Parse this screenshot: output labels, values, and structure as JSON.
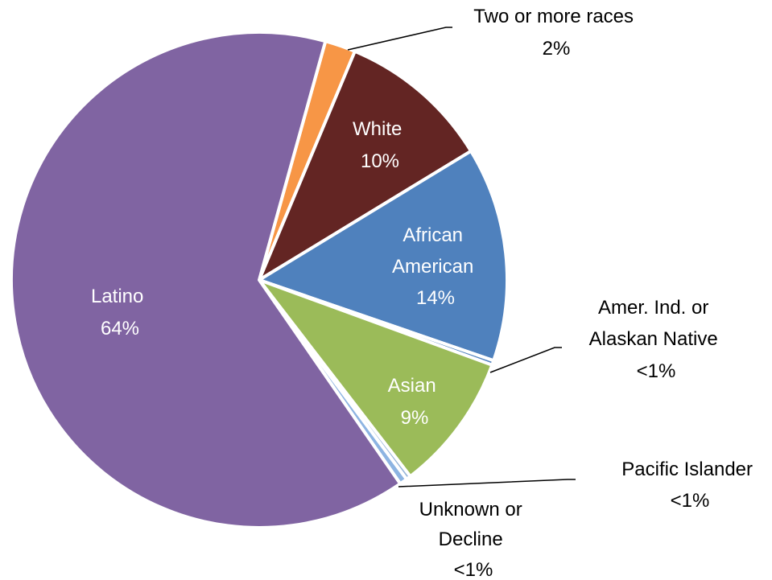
{
  "chart_data": {
    "type": "pie",
    "title": "",
    "slices": [
      {
        "name": "Two or more races",
        "value": 2,
        "label": "2%",
        "color": "#F79646"
      },
      {
        "name": "White",
        "value": 10,
        "label": "10%",
        "color": "#632523"
      },
      {
        "name": "African American",
        "value": 14,
        "label": "14%",
        "color": "#4F81BD"
      },
      {
        "name": "Amer. Ind. or Alaskan Native",
        "value": 0.3,
        "label": "<1%",
        "color": "#4F81BD"
      },
      {
        "name": "Asian",
        "value": 9,
        "label": "9%",
        "color": "#9BBB59"
      },
      {
        "name": "Pacific Islander",
        "value": 0.3,
        "label": "<1%",
        "color": "#95B3D7"
      },
      {
        "name": "Unknown or Decline",
        "value": 0.5,
        "label": "<1%",
        "color": "#8DB4E2"
      },
      {
        "name": "Latino",
        "value": 64,
        "label": "64%",
        "color": "#8064A2"
      }
    ]
  },
  "labels": {
    "two_or_more": {
      "line1": "Two or more races",
      "line2": "2%"
    },
    "white": {
      "line1": "White",
      "line2": "10%"
    },
    "african_american": {
      "line1": "African",
      "line2": "American",
      "line3": "14%"
    },
    "amer_ind": {
      "line1": "Amer. Ind.  or",
      "line2": "Alaskan Native",
      "line3": "<1%"
    },
    "asian": {
      "line1": "Asian",
      "line2": "9%"
    },
    "pacific_islander": {
      "line1": "Pacific Islander",
      "line2": "<1%"
    },
    "unknown": {
      "line1": "Unknown or",
      "line2": "Decline",
      "line3": "<1%"
    },
    "latino": {
      "line1": "Latino",
      "line2": "64%"
    }
  }
}
